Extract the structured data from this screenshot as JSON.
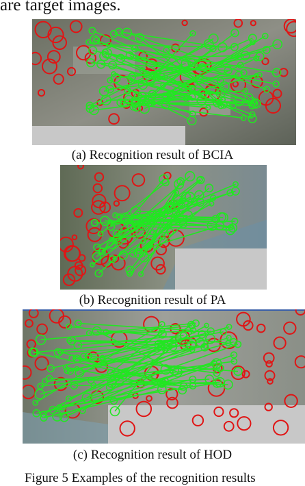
{
  "header_text": "are target images.",
  "panels": [
    {
      "id": "a",
      "caption": "(a) Recognition result of BCIA"
    },
    {
      "id": "b",
      "caption": "(b) Recognition result of PA"
    },
    {
      "id": "c",
      "caption": "(c) Recognition result of HOD"
    }
  ],
  "figure_caption": "Figure 5    Examples of the recognition results",
  "colors": {
    "keypoint": "#e01515",
    "match_line": "#22e622",
    "placeholder": "#c8c8c8"
  }
}
